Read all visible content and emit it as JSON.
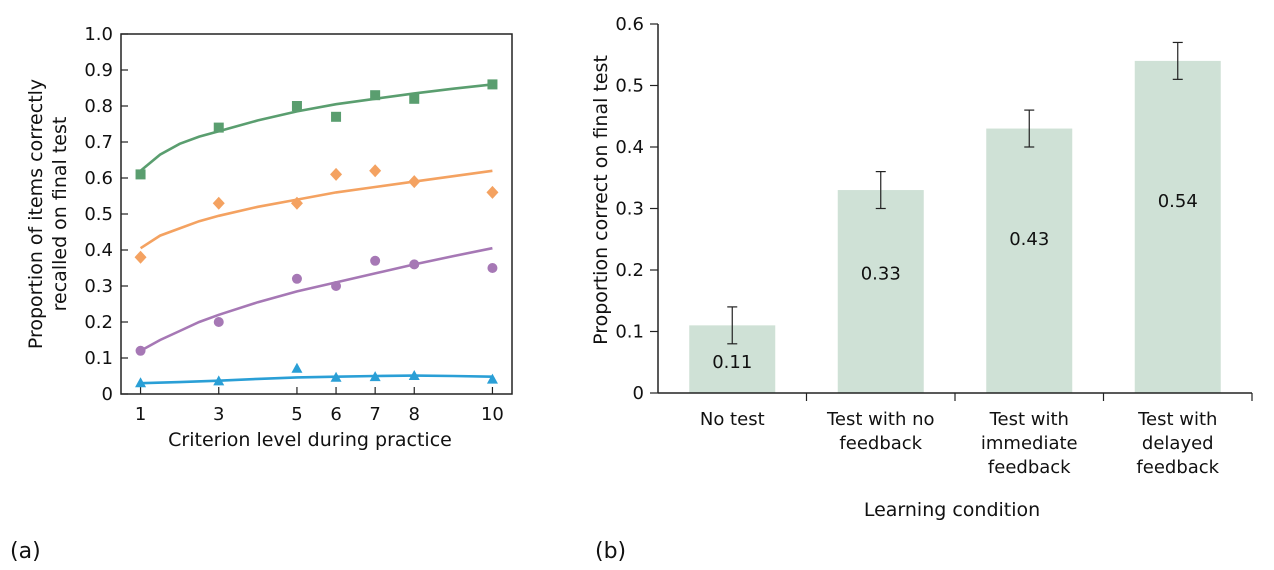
{
  "panels": {
    "a_label": "(a)",
    "b_label": "(b)"
  },
  "chart_data": [
    {
      "type": "scatter",
      "xlabel": "Criterion level during practice",
      "ylabel_line1": "Proportion of items correctly",
      "ylabel_line2": "recalled on final test",
      "x_ticks": [
        1,
        3,
        5,
        6,
        7,
        8,
        10
      ],
      "y_ticks": [
        "0",
        "0.1",
        "0.2",
        "0.3",
        "0.4",
        "0.5",
        "0.6",
        "0.7",
        "0.8",
        "0.9",
        "1.0"
      ],
      "xlim": [
        0.5,
        10.5
      ],
      "ylim": [
        0,
        1.0
      ],
      "grid": false,
      "series": [
        {
          "marker": "square",
          "color": "#5a9e6f",
          "x": [
            1,
            3,
            5,
            6,
            7,
            8,
            10
          ],
          "y": [
            0.61,
            0.74,
            0.8,
            0.77,
            0.83,
            0.82,
            0.86
          ],
          "fit_x": [
            1,
            1.5,
            2,
            2.5,
            3,
            4,
            5,
            6,
            7,
            8,
            9,
            10
          ],
          "fit_y": [
            0.62,
            0.665,
            0.695,
            0.715,
            0.73,
            0.76,
            0.785,
            0.805,
            0.82,
            0.835,
            0.848,
            0.86
          ]
        },
        {
          "marker": "diamond",
          "color": "#f4a261",
          "x": [
            1,
            3,
            5,
            6,
            7,
            8,
            10
          ],
          "y": [
            0.38,
            0.53,
            0.53,
            0.61,
            0.62,
            0.59,
            0.56
          ],
          "fit_x": [
            1,
            1.5,
            2,
            2.5,
            3,
            4,
            5,
            6,
            7,
            8,
            9,
            10
          ],
          "fit_y": [
            0.405,
            0.44,
            0.46,
            0.48,
            0.495,
            0.52,
            0.54,
            0.56,
            0.575,
            0.59,
            0.605,
            0.62
          ]
        },
        {
          "marker": "circle",
          "color": "#a678b5",
          "x": [
            1,
            3,
            5,
            6,
            7,
            8,
            10
          ],
          "y": [
            0.12,
            0.2,
            0.32,
            0.3,
            0.37,
            0.36,
            0.35
          ],
          "fit_x": [
            1,
            1.5,
            2,
            2.5,
            3,
            4,
            5,
            6,
            7,
            8,
            9,
            10
          ],
          "fit_y": [
            0.12,
            0.15,
            0.175,
            0.2,
            0.22,
            0.255,
            0.285,
            0.31,
            0.335,
            0.36,
            0.383,
            0.405
          ]
        },
        {
          "marker": "triangle",
          "color": "#2a9fd6",
          "x": [
            1,
            3,
            5,
            6,
            7,
            8,
            10
          ],
          "y": [
            0.03,
            0.035,
            0.07,
            0.045,
            0.047,
            0.05,
            0.04
          ],
          "fit_x": [
            1,
            2,
            3,
            4,
            5,
            6,
            7,
            8,
            9,
            10
          ],
          "fit_y": [
            0.03,
            0.033,
            0.037,
            0.042,
            0.046,
            0.048,
            0.05,
            0.051,
            0.05,
            0.048
          ]
        }
      ]
    },
    {
      "type": "bar",
      "xlabel": "Learning condition",
      "ylabel": "Proportion correct on final test",
      "ylim": [
        0,
        0.6
      ],
      "y_ticks": [
        "0",
        "0.1",
        "0.2",
        "0.3",
        "0.4",
        "0.5",
        "0.6"
      ],
      "bar_color": "#cfe1d6",
      "categories": [
        [
          "No test"
        ],
        [
          "Test with no",
          "feedback"
        ],
        [
          "Test with",
          "immediate",
          "feedback"
        ],
        [
          "Test with",
          "delayed",
          "feedback"
        ]
      ],
      "values": [
        0.11,
        0.33,
        0.43,
        0.54
      ],
      "value_labels": [
        "0.11",
        "0.33",
        "0.43",
        "0.54"
      ],
      "error": [
        0.03,
        0.03,
        0.03,
        0.03
      ]
    }
  ]
}
